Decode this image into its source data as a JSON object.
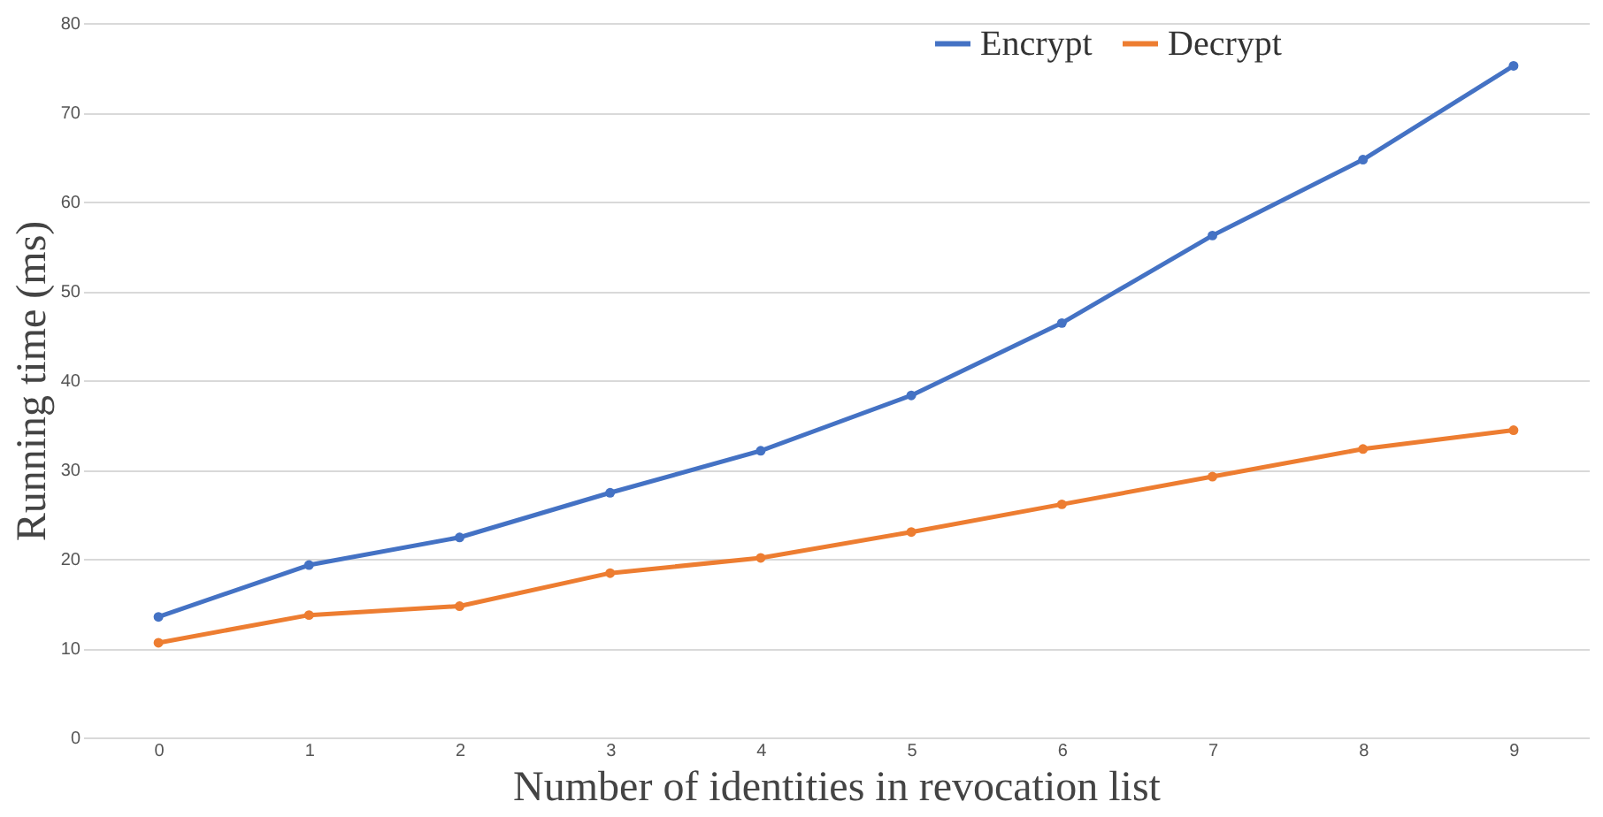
{
  "chart_data": {
    "type": "line",
    "xlabel": "Number of identities in revocation list",
    "ylabel": "Running time (ms)",
    "categories": [
      "0",
      "1",
      "2",
      "3",
      "4",
      "5",
      "6",
      "7",
      "8",
      "9"
    ],
    "series": [
      {
        "name": "Encrypt",
        "color": "#4472c4",
        "values": [
          13.5,
          19.3,
          22.4,
          27.4,
          32.1,
          38.3,
          46.4,
          56.2,
          64.7,
          75.2
        ]
      },
      {
        "name": "Decrypt",
        "color": "#ed7d31",
        "values": [
          10.6,
          13.7,
          14.7,
          18.4,
          20.1,
          23.0,
          26.1,
          29.2,
          32.3,
          34.4
        ]
      }
    ],
    "ylim": [
      0,
      80
    ],
    "yticks": [
      0,
      10,
      20,
      30,
      40,
      50,
      60,
      70,
      80
    ],
    "grid": "y",
    "legend": "top right",
    "marker": "circle",
    "line_style": "solid"
  }
}
